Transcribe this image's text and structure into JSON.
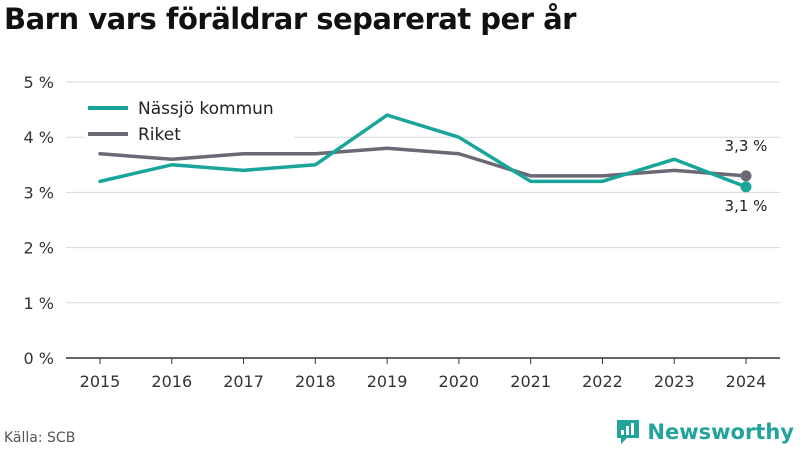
{
  "title": "Barn vars föräldrar separerat per år",
  "source": "Källa: SCB",
  "brand": "Newsworthy",
  "colors": {
    "series1": "#1aa59b",
    "series2": "#6b6973",
    "grid": "#d9d9d9",
    "axis": "#333333",
    "brand": "#22a39b"
  },
  "chart_data": {
    "type": "line",
    "title": "Barn vars föräldrar separerat per år",
    "x": [
      "2015",
      "2016",
      "2017",
      "2018",
      "2019",
      "2020",
      "2021",
      "2022",
      "2023",
      "2024"
    ],
    "yticks": [
      "0 %",
      "1 %",
      "2 %",
      "3 %",
      "4 %",
      "5 %"
    ],
    "ylim": [
      0,
      5
    ],
    "grid": true,
    "legend": "top-left",
    "series": [
      {
        "name": "Nässjö kommun",
        "values": [
          3.2,
          3.5,
          3.4,
          3.5,
          4.4,
          4.0,
          3.2,
          3.2,
          3.6,
          3.1
        ],
        "end_label": "3,1 %"
      },
      {
        "name": "Riket",
        "values": [
          3.7,
          3.6,
          3.7,
          3.7,
          3.8,
          3.7,
          3.3,
          3.3,
          3.4,
          3.3
        ],
        "end_label": "3,3 %"
      }
    ]
  }
}
